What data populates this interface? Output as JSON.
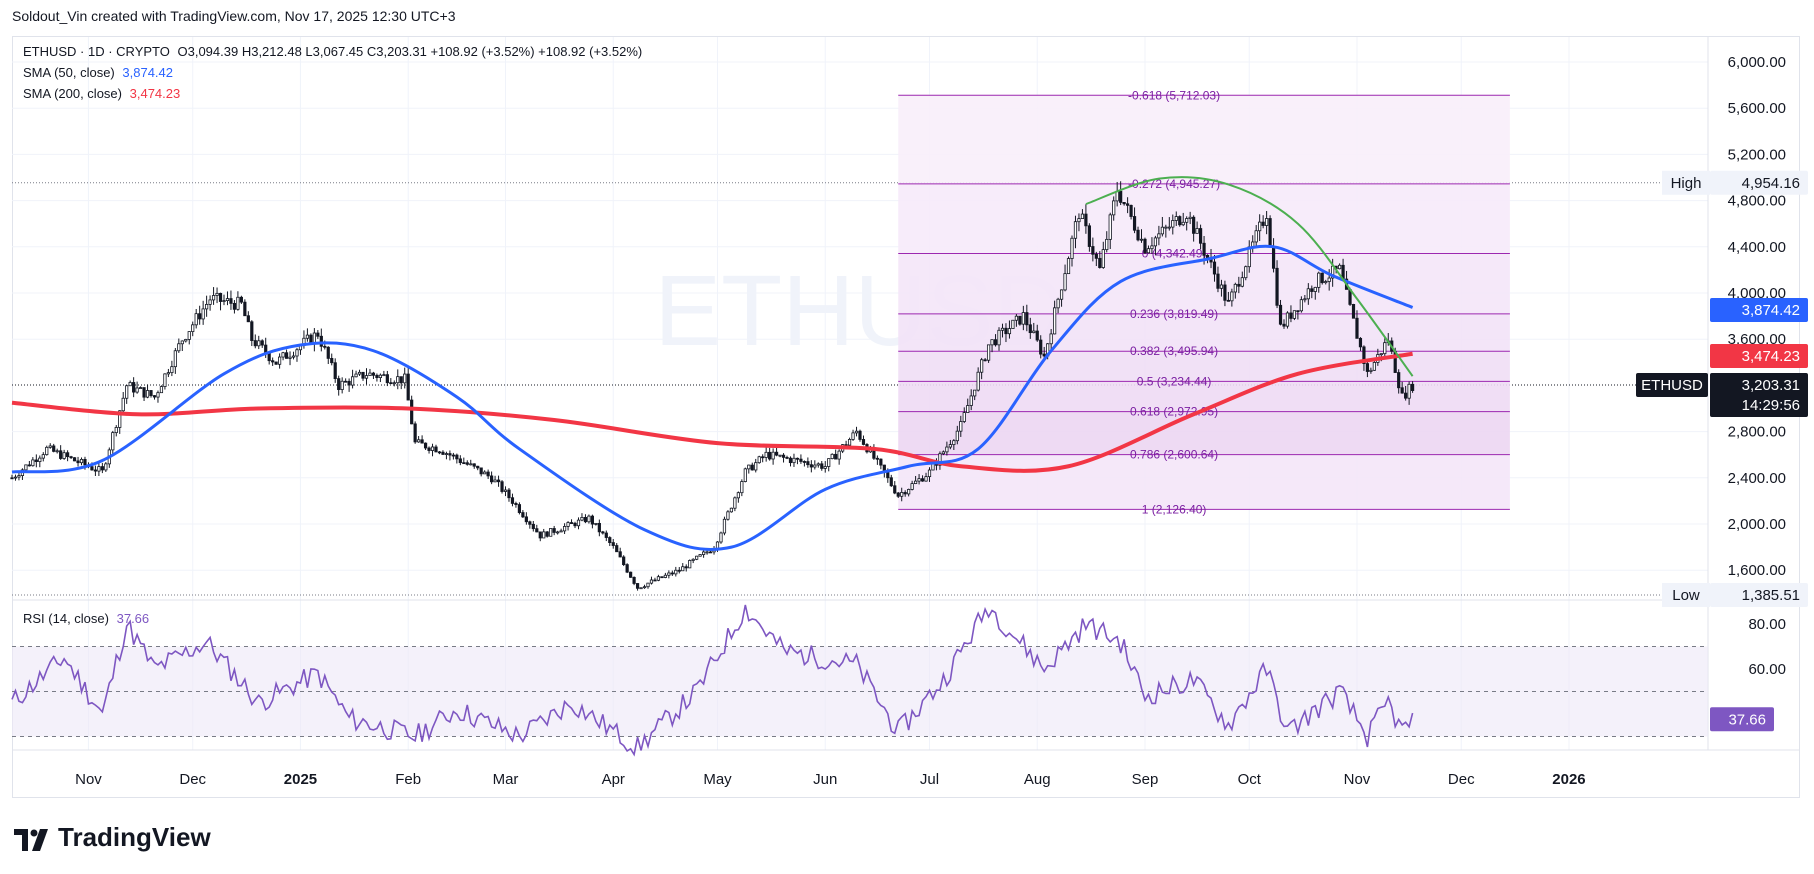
{
  "header": {
    "attribution": "Soldout_Vin created with TradingView.com, Nov 17, 2025 12:30 UTC+3"
  },
  "legend": {
    "symbol": "ETHUSD · 1D · CRYPTO",
    "ohlc": "O3,094.39  H3,212.48  L3,067.45  C3,203.31  +108.92 (+3.52%)  +108.92 (+3.52%)",
    "sma50_label": "SMA (50, close)",
    "sma50_value": "3,874.42",
    "sma200_label": "SMA (200, close)",
    "sma200_value": "3,474.23",
    "rsi_label": "RSI (14, close)",
    "rsi_value": "37.66"
  },
  "watermark": "ETHUSD",
  "badges": {
    "high_label": "High",
    "high_value": "4,954.16",
    "low_label": "Low",
    "low_value": "1,385.51",
    "sma50": "3,874.42",
    "sma200": "3,474.23",
    "last_symbol": "ETHUSD",
    "last_price": "3,203.31",
    "countdown": "14:29:56",
    "rsi": "37.66"
  },
  "colors": {
    "sma50": "#2962ff",
    "sma200": "#f23645",
    "rsi": "#7e57c2",
    "fib": "#9c27b0",
    "arc": "#4caf50",
    "candle": "#131722"
  },
  "brand": "TradingView",
  "chart_data": {
    "type": "candlestick",
    "symbol": "ETHUSD",
    "interval": "1D",
    "price_axis": {
      "ticks": [
        "6,000.00",
        "5,600.00",
        "5,200.00",
        "4,800.00",
        "4,400.00",
        "4,000.00",
        "3,600.00",
        "2,800.00",
        "2,400.00",
        "2,000.00",
        "1,600.00"
      ],
      "range": [
        1300,
        6100
      ]
    },
    "time_axis": {
      "ticks": [
        "Nov",
        "Dec",
        "2025",
        "Feb",
        "Mar",
        "Apr",
        "May",
        "Jun",
        "Jul",
        "Aug",
        "Sep",
        "Oct",
        "Nov",
        "Dec",
        "2026"
      ]
    },
    "price_path": [
      [
        "2024-10-10",
        2400
      ],
      [
        "2024-10-20",
        2650
      ],
      [
        "2024-11-01",
        2500
      ],
      [
        "2024-11-05",
        2450
      ],
      [
        "2024-11-12",
        3200
      ],
      [
        "2024-11-20",
        3100
      ],
      [
        "2024-11-28",
        3600
      ],
      [
        "2024-12-06",
        3950
      ],
      [
        "2024-12-15",
        3900
      ],
      [
        "2024-12-18",
        3600
      ],
      [
        "2024-12-25",
        3400
      ],
      [
        "2025-01-06",
        3650
      ],
      [
        "2025-01-12",
        3200
      ],
      [
        "2025-01-20",
        3300
      ],
      [
        "2025-01-31",
        3250
      ],
      [
        "2025-02-03",
        2700
      ],
      [
        "2025-02-10",
        2650
      ],
      [
        "2025-02-25",
        2400
      ],
      [
        "2025-03-03",
        2200
      ],
      [
        "2025-03-11",
        1900
      ],
      [
        "2025-03-25",
        2050
      ],
      [
        "2025-04-01",
        1800
      ],
      [
        "2025-04-08",
        1450
      ],
      [
        "2025-04-20",
        1600
      ],
      [
        "2025-04-30",
        1800
      ],
      [
        "2025-05-09",
        2450
      ],
      [
        "2025-05-15",
        2600
      ],
      [
        "2025-06-01",
        2500
      ],
      [
        "2025-06-10",
        2800
      ],
      [
        "2025-06-22",
        2250
      ],
      [
        "2025-07-01",
        2450
      ],
      [
        "2025-07-10",
        2850
      ],
      [
        "2025-07-18",
        3550
      ],
      [
        "2025-07-28",
        3800
      ],
      [
        "2025-08-03",
        3450
      ],
      [
        "2025-08-13",
        4700
      ],
      [
        "2025-08-19",
        4200
      ],
      [
        "2025-08-24",
        4900
      ],
      [
        "2025-09-01",
        4400
      ],
      [
        "2025-09-13",
        4700
      ],
      [
        "2025-09-25",
        3900
      ],
      [
        "2025-10-06",
        4700
      ],
      [
        "2025-10-10",
        3700
      ],
      [
        "2025-10-20",
        4100
      ],
      [
        "2025-10-27",
        4200
      ],
      [
        "2025-11-04",
        3300
      ],
      [
        "2025-11-10",
        3600
      ],
      [
        "2025-11-14",
        3100
      ],
      [
        "2025-11-17",
        3203
      ]
    ],
    "sma50_path": [
      [
        "2024-10-10",
        2450
      ],
      [
        "2024-11-05",
        2550
      ],
      [
        "2024-12-10",
        3300
      ],
      [
        "2025-01-01",
        3550
      ],
      [
        "2025-01-22",
        3500
      ],
      [
        "2025-02-15",
        3100
      ],
      [
        "2025-03-05",
        2650
      ],
      [
        "2025-04-10",
        1950
      ],
      [
        "2025-05-05",
        1800
      ],
      [
        "2025-06-01",
        2300
      ],
      [
        "2025-06-25",
        2500
      ],
      [
        "2025-07-15",
        2650
      ],
      [
        "2025-08-05",
        3500
      ],
      [
        "2025-08-25",
        4100
      ],
      [
        "2025-09-20",
        4300
      ],
      [
        "2025-10-08",
        4400
      ],
      [
        "2025-10-25",
        4150
      ],
      [
        "2025-11-17",
        3874.42
      ]
    ],
    "sma200_path": [
      [
        "2024-10-10",
        3050
      ],
      [
        "2024-11-15",
        2950
      ],
      [
        "2024-12-20",
        3000
      ],
      [
        "2025-02-01",
        3000
      ],
      [
        "2025-03-15",
        2900
      ],
      [
        "2025-05-01",
        2700
      ],
      [
        "2025-06-15",
        2650
      ],
      [
        "2025-07-10",
        2500
      ],
      [
        "2025-08-10",
        2500
      ],
      [
        "2025-09-15",
        2950
      ],
      [
        "2025-10-15",
        3300
      ],
      [
        "2025-11-17",
        3474.23
      ]
    ],
    "fib_levels": [
      {
        "ratio": "-0.618",
        "label": "-0.618 (5,712.03)",
        "price": 5712.03
      },
      {
        "ratio": "-0.272",
        "label": "-0.272 (4,945.27)",
        "price": 4945.27
      },
      {
        "ratio": "0",
        "label": "0 (4,342.49)",
        "price": 4342.49
      },
      {
        "ratio": "0.236",
        "label": "0.236 (3,819.49)",
        "price": 3819.49
      },
      {
        "ratio": "0.382",
        "label": "0.382 (3,495.94)",
        "price": 3495.94
      },
      {
        "ratio": "0.5",
        "label": "0.5 (3,234.44)",
        "price": 3234.44
      },
      {
        "ratio": "0.618",
        "label": "0.618 (2,972.95)",
        "price": 2972.95
      },
      {
        "ratio": "0.786",
        "label": "0.786 (2,600.64)",
        "price": 2600.64
      },
      {
        "ratio": "1",
        "label": "1 (2,126.40)",
        "price": 2126.4
      }
    ],
    "fib_range": {
      "start": "2025-06-22",
      "end": "2025-12-15"
    },
    "arc_path": [
      [
        "2025-08-15",
        4770
      ],
      [
        "2025-09-05",
        4990
      ],
      [
        "2025-09-25",
        4940
      ],
      [
        "2025-10-15",
        4600
      ],
      [
        "2025-11-01",
        3950
      ],
      [
        "2025-11-17",
        3280
      ]
    ],
    "high": 4954.16,
    "low": 1385.51,
    "last": 3203.31,
    "rsi": {
      "ticks": [
        "80.00",
        "60.00"
      ],
      "range": [
        25,
        95
      ],
      "upper": 70,
      "mid": 50,
      "lower": 30,
      "path": [
        [
          "2024-10-10",
          45
        ],
        [
          "2024-10-25",
          65
        ],
        [
          "2024-11-05",
          40
        ],
        [
          "2024-11-12",
          80
        ],
        [
          "2024-11-20",
          60
        ],
        [
          "2024-12-05",
          72
        ],
        [
          "2024-12-20",
          45
        ],
        [
          "2025-01-06",
          58
        ],
        [
          "2025-01-15",
          38
        ],
        [
          "2025-02-03",
          30
        ],
        [
          "2025-02-15",
          42
        ],
        [
          "2025-03-05",
          30
        ],
        [
          "2025-03-20",
          45
        ],
        [
          "2025-04-08",
          25
        ],
        [
          "2025-04-25",
          50
        ],
        [
          "2025-05-09",
          87
        ],
        [
          "2025-05-20",
          68
        ],
        [
          "2025-06-10",
          62
        ],
        [
          "2025-06-22",
          32
        ],
        [
          "2025-07-05",
          55
        ],
        [
          "2025-07-18",
          88
        ],
        [
          "2025-08-03",
          60
        ],
        [
          "2025-08-15",
          80
        ],
        [
          "2025-08-25",
          72
        ],
        [
          "2025-09-01",
          48
        ],
        [
          "2025-09-15",
          55
        ],
        [
          "2025-09-25",
          35
        ],
        [
          "2025-10-06",
          60
        ],
        [
          "2025-10-12",
          32
        ],
        [
          "2025-10-27",
          50
        ],
        [
          "2025-11-04",
          30
        ],
        [
          "2025-11-10",
          45
        ],
        [
          "2025-11-14",
          32
        ],
        [
          "2025-11-17",
          37.66
        ]
      ]
    }
  }
}
